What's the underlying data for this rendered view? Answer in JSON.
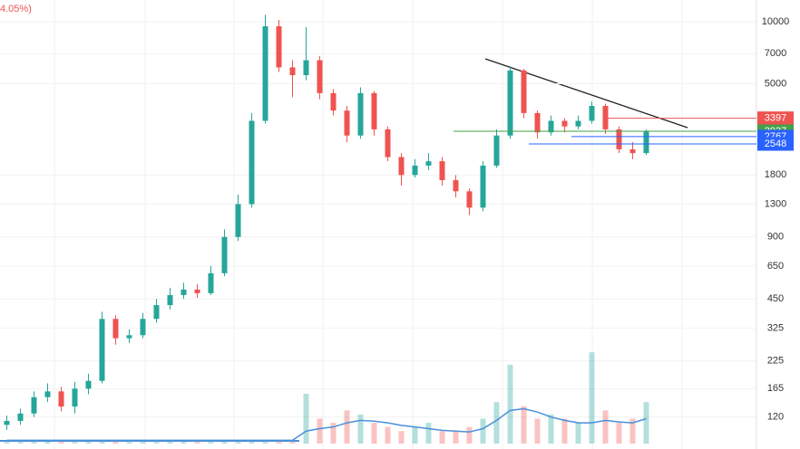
{
  "chart_data": {
    "type": "candlestick",
    "header": "4.05%)",
    "ylim": [
      84,
      12750
    ],
    "log_scale": true,
    "yticks": [
      10000,
      7000,
      5000,
      1800,
      1300,
      900,
      650,
      450,
      325,
      225,
      165,
      120
    ],
    "open": [
      110,
      115,
      125,
      150,
      160,
      135,
      165,
      180,
      360,
      290,
      300,
      360,
      420,
      470,
      500,
      480,
      600,
      900,
      1300,
      3300,
      9500,
      6000,
      5500,
      6500,
      4500,
      3700,
      2800,
      4500,
      3000,
      2200,
      1800,
      2000,
      2100,
      1700,
      1500,
      1250,
      2000,
      2800,
      5800,
      3600,
      2900,
      3300,
      3100,
      3300,
      3900,
      3000,
      2400,
      2300
    ],
    "high": [
      122,
      132,
      160,
      175,
      168,
      178,
      195,
      390,
      375,
      320,
      385,
      450,
      510,
      540,
      530,
      650,
      980,
      1450,
      3600,
      10800,
      10200,
      6500,
      9400,
      6800,
      4700,
      3900,
      4800,
      4600,
      3100,
      2300,
      2150,
      2300,
      2200,
      1800,
      1550,
      2100,
      3000,
      6100,
      5900,
      3700,
      3500,
      3400,
      3500,
      4100,
      4000,
      3100,
      2600,
      3000
    ],
    "low": [
      104,
      110,
      120,
      142,
      128,
      125,
      155,
      175,
      270,
      275,
      290,
      345,
      400,
      450,
      455,
      470,
      580,
      860,
      1250,
      3200,
      5700,
      4300,
      5200,
      4200,
      3500,
      2600,
      2700,
      2800,
      2100,
      1600,
      1750,
      1900,
      1600,
      1400,
      1150,
      1200,
      1950,
      2700,
      3400,
      2700,
      2800,
      2900,
      3000,
      3200,
      2850,
      2300,
      2150,
      2250
    ],
    "close": [
      115,
      125,
      150,
      160,
      135,
      165,
      180,
      360,
      290,
      300,
      360,
      420,
      470,
      500,
      480,
      600,
      900,
      1300,
      3300,
      9500,
      6000,
      5500,
      6500,
      4500,
      3700,
      2800,
      4500,
      3000,
      2200,
      1800,
      2000,
      2100,
      1700,
      1500,
      1250,
      2000,
      2800,
      5800,
      3600,
      2900,
      3300,
      3100,
      3300,
      3900,
      3000,
      2400,
      2300,
      2937
    ],
    "up_color": "#26a69a",
    "down_color": "#ef5350",
    "volume_lim": [
      0,
      120
    ],
    "volume": [
      2,
      2,
      2,
      2,
      2,
      2,
      2,
      2,
      2,
      2,
      2,
      2,
      2,
      2,
      2,
      2,
      2,
      2,
      2,
      2,
      2,
      2,
      60,
      30,
      25,
      40,
      35,
      25,
      20,
      15,
      20,
      25,
      15,
      15,
      20,
      30,
      50,
      95,
      45,
      30,
      35,
      30,
      25,
      110,
      40,
      25,
      30,
      50
    ],
    "volume_ma": [
      4,
      4,
      4,
      4,
      4,
      4,
      4,
      4,
      4,
      4,
      4,
      4,
      4,
      4,
      4,
      4,
      4,
      4,
      4,
      4,
      4,
      4,
      15,
      18,
      20,
      25,
      28,
      27,
      25,
      22,
      20,
      18,
      16,
      15,
      14,
      18,
      28,
      40,
      42,
      38,
      32,
      28,
      25,
      25,
      28,
      26,
      25,
      30
    ],
    "volume_ma_color": "#4a90d9",
    "price_lines": [
      {
        "value": 3397,
        "color": "#ef5350"
      },
      {
        "value": 2937,
        "color": "#43a047"
      },
      {
        "value": 2767,
        "color": "#2962ff"
      },
      {
        "value": 2548,
        "color": "#2962ff"
      }
    ]
  }
}
